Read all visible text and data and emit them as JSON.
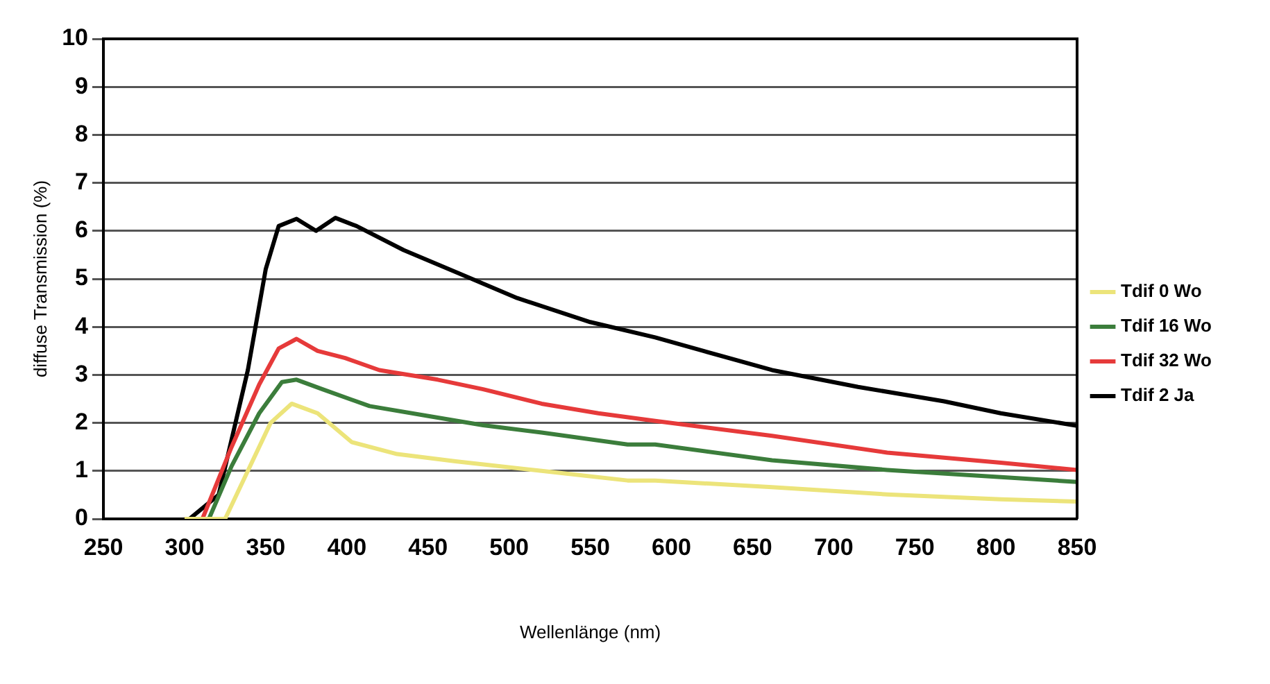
{
  "chart_data": {
    "type": "line",
    "xlabel": "Wellenlänge (nm)",
    "ylabel": "diffuse Transmission (%)",
    "xlim": [
      250,
      850
    ],
    "xticks": [
      250,
      300,
      350,
      400,
      450,
      500,
      550,
      600,
      650,
      700,
      750,
      800,
      850
    ],
    "ylim": [
      0,
      10
    ],
    "yticks": [
      0,
      1,
      2,
      3,
      4,
      5,
      6,
      7,
      8,
      9,
      10
    ],
    "grid": "y",
    "legend": "right",
    "marker": "none",
    "line_style": "solid",
    "series": [
      {
        "name": "Tdif 0 Wo",
        "color": "#ece47a",
        "x": [
          300,
          325,
          339,
          353,
          366,
          382,
          403,
          431,
          467,
          520,
          573,
          590,
          662,
          733,
          803,
          850
        ],
        "values": [
          0,
          0,
          1.0,
          2.0,
          2.4,
          2.2,
          1.6,
          1.35,
          1.2,
          1.0,
          0.8,
          0.8,
          0.66,
          0.51,
          0.41,
          0.36
        ]
      },
      {
        "name": "Tdif 16 Wo",
        "color": "#3b7d3b",
        "x": [
          300,
          315,
          329,
          346,
          360,
          369,
          385,
          414,
          449,
          484,
          520,
          573,
          590,
          662,
          733,
          803,
          850
        ],
        "values": [
          0,
          0,
          1.1,
          2.2,
          2.85,
          2.9,
          2.7,
          2.35,
          2.15,
          1.95,
          1.8,
          1.55,
          1.55,
          1.22,
          1.02,
          0.87,
          0.77
        ]
      },
      {
        "name": "Tdif 32 Wo",
        "color": "#e63a3a",
        "x": [
          300,
          311,
          329,
          346,
          358,
          369,
          382,
          399,
          420,
          456,
          484,
          520,
          555,
          590,
          662,
          733,
          803,
          850
        ],
        "values": [
          0,
          0,
          1.5,
          2.8,
          3.55,
          3.75,
          3.5,
          3.35,
          3.1,
          2.9,
          2.7,
          2.4,
          2.2,
          2.04,
          1.73,
          1.38,
          1.17,
          1.02
        ]
      },
      {
        "name": "Tdif 2 Ja",
        "color": "#000000",
        "x": [
          300,
          303,
          321,
          339,
          350,
          358,
          369,
          381,
          393,
          406,
          435,
          470,
          505,
          550,
          590,
          662,
          715,
          768,
          803,
          850
        ],
        "values": [
          0,
          0,
          0.5,
          3.1,
          5.2,
          6.1,
          6.25,
          6.0,
          6.27,
          6.1,
          5.6,
          5.1,
          4.6,
          4.1,
          3.78,
          3.1,
          2.75,
          2.45,
          2.2,
          1.94
        ]
      }
    ]
  }
}
